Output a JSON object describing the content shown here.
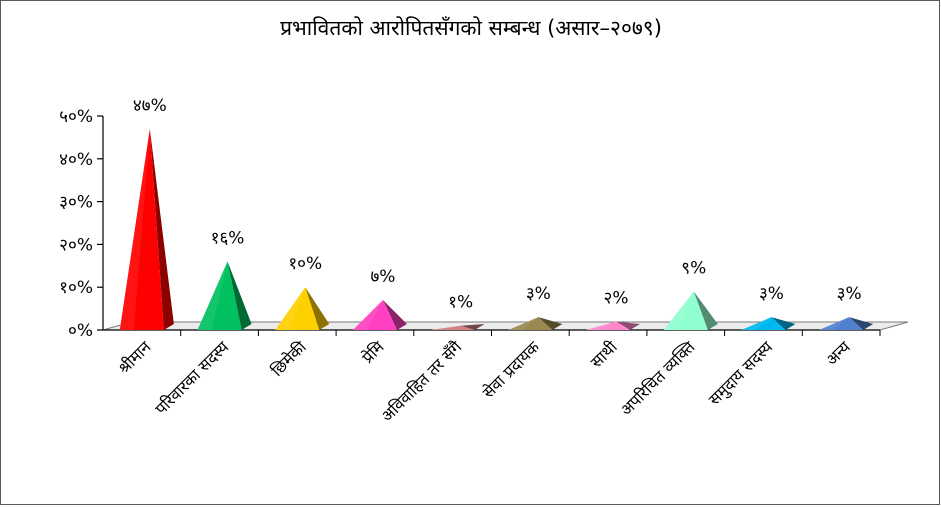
{
  "chart_data": {
    "type": "bar",
    "title": "प्रभावितको आरोपितसँगको सम्बन्ध (असार–२०७९)",
    "categories": [
      "श्रीमान",
      "परिवारका सदस्य",
      "छिमेकी",
      "प्रेमि",
      "अविवाहित तर सँगै",
      "सेवा प्रदायक",
      "साथी",
      "अपरिचित व्यक्ति",
      "समुदाय सदस्य",
      "अन्य"
    ],
    "values": [
      47,
      16,
      10,
      7,
      1,
      3,
      2,
      9,
      3,
      3
    ],
    "value_labels": [
      "४७%",
      "१६%",
      "१०%",
      "७%",
      "१%",
      "३%",
      "२%",
      "९%",
      "३%",
      "३%"
    ],
    "colors": [
      "#ff0000",
      "#00c060",
      "#ffd000",
      "#ff40c0",
      "#d08080",
      "#9a8a50",
      "#ff88cc",
      "#90ffd0",
      "#00b8f0",
      "#5080d0"
    ],
    "yticks": [
      0,
      10,
      20,
      30,
      40,
      50
    ],
    "ytick_labels": [
      "०%",
      "१०%",
      "२०%",
      "३०%",
      "४०%",
      "५०%"
    ],
    "ylim": [
      0,
      50
    ],
    "xlabel": "",
    "ylabel": "",
    "grid": false,
    "legend": "none",
    "mark_shape": "3d-pyramid"
  }
}
